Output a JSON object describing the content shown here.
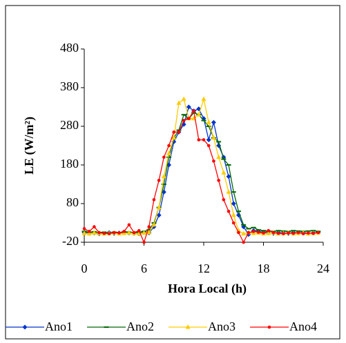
{
  "chart_data": {
    "type": "line",
    "xlabel": "Hora Local (h)",
    "ylabel": "LE (W/m²)",
    "x": [
      0,
      0.5,
      1,
      1.5,
      2,
      2.5,
      3,
      3.5,
      4,
      4.5,
      5,
      5.5,
      6,
      6.5,
      7,
      7.5,
      8,
      8.5,
      9,
      9.5,
      10,
      10.5,
      11,
      11.5,
      12,
      12.5,
      13,
      13.5,
      14,
      14.5,
      15,
      15.5,
      16,
      16.5,
      17,
      17.5,
      18,
      18.5,
      19,
      19.5,
      20,
      20.5,
      21,
      21.5,
      22,
      22.5,
      23,
      23.5
    ],
    "series": [
      {
        "name": "Ano1",
        "color": "#0033cc",
        "marker": "diamond",
        "values": [
          5,
          3,
          4,
          2,
          3,
          5,
          3,
          4,
          5,
          4,
          3,
          2,
          5,
          4,
          20,
          50,
          110,
          180,
          240,
          265,
          285,
          330,
          320,
          325,
          300,
          245,
          290,
          230,
          200,
          150,
          80,
          50,
          20,
          0,
          10,
          8,
          5,
          4,
          3,
          5,
          4,
          3,
          5,
          4,
          5,
          3,
          4,
          5
        ]
      },
      {
        "name": "Ano2",
        "color": "#006600",
        "marker": "dash",
        "values": [
          8,
          6,
          7,
          5,
          6,
          4,
          6,
          5,
          7,
          6,
          5,
          6,
          8,
          12,
          30,
          70,
          130,
          200,
          250,
          270,
          310,
          300,
          315,
          310,
          295,
          280,
          250,
          240,
          195,
          180,
          110,
          60,
          25,
          15,
          18,
          12,
          10,
          9,
          8,
          10,
          9,
          8,
          10,
          9,
          8,
          9,
          10,
          8
        ]
      },
      {
        "name": "Ano3",
        "color": "#ffcc00",
        "marker": "triangle",
        "values": [
          3,
          2,
          4,
          3,
          2,
          3,
          4,
          2,
          3,
          4,
          3,
          2,
          4,
          5,
          25,
          70,
          150,
          210,
          250,
          340,
          350,
          300,
          300,
          310,
          350,
          290,
          250,
          200,
          160,
          110,
          50,
          10,
          2,
          5,
          3,
          4,
          2,
          3,
          4,
          2,
          3,
          4,
          2,
          3,
          4,
          2,
          3,
          4
        ]
      },
      {
        "name": "Ano4",
        "color": "#ff0000",
        "marker": "dot",
        "values": [
          15,
          8,
          20,
          5,
          3,
          2,
          5,
          4,
          8,
          25,
          5,
          10,
          -20,
          20,
          90,
          140,
          200,
          230,
          265,
          265,
          295,
          300,
          320,
          245,
          245,
          230,
          190,
          140,
          90,
          60,
          30,
          5,
          -20,
          5,
          8,
          6,
          4,
          10,
          5,
          3,
          2,
          4,
          3,
          5,
          2,
          4,
          3,
          5
        ]
      }
    ],
    "xlim": [
      0,
      24
    ],
    "xticks": [
      0,
      6,
      12,
      18,
      24
    ],
    "ylim": [
      -20,
      480
    ],
    "yticks": [
      -20,
      80,
      180,
      280,
      380,
      480
    ],
    "legend": "bottom"
  }
}
